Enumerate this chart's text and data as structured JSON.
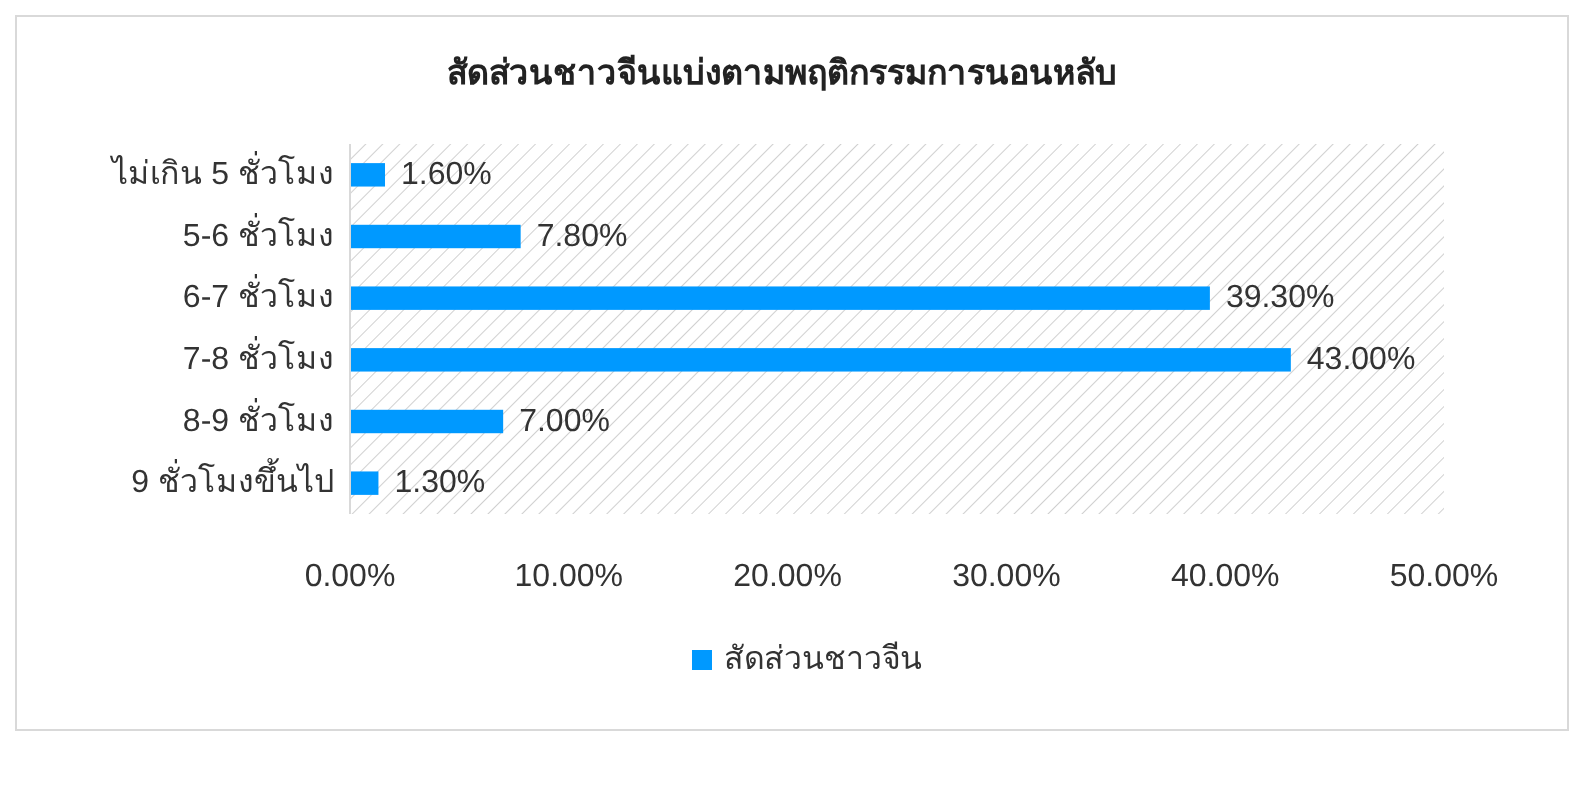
{
  "chart_data": {
    "type": "bar",
    "orientation": "horizontal",
    "title": "สัดส่วนชาวจีนแบ่งตามพฤติกรรมการนอนหลับ",
    "categories": [
      "ไม่เกิน 5 ชั่วโมง",
      "5-6 ชั่วโมง",
      "6-7 ชั่วโมง",
      "7-8 ชั่วโมง",
      "8-9 ชั่วโมง",
      "9 ชั่วโมงขึ้นไป"
    ],
    "series": [
      {
        "name": "สัดส่วนชาวจีน",
        "color": "#0099ff",
        "values": [
          1.6,
          7.8,
          39.3,
          43,
          7,
          1.3
        ],
        "value_labels": [
          "1.60%",
          "7.80%",
          "39.30%",
          "43.00%",
          "7.00%",
          "1.30%"
        ]
      }
    ],
    "xlim": [
      0,
      50
    ],
    "xticks": [
      {
        "value": 0,
        "label": "0.00%"
      },
      {
        "value": 10,
        "label": "10.00%"
      },
      {
        "value": 20,
        "label": "20.00%"
      },
      {
        "value": 30,
        "label": "30.00%"
      },
      {
        "value": 40,
        "label": "40.00%"
      },
      {
        "value": 50,
        "label": "50.00%"
      }
    ],
    "grid": false,
    "legend": "bottom"
  }
}
